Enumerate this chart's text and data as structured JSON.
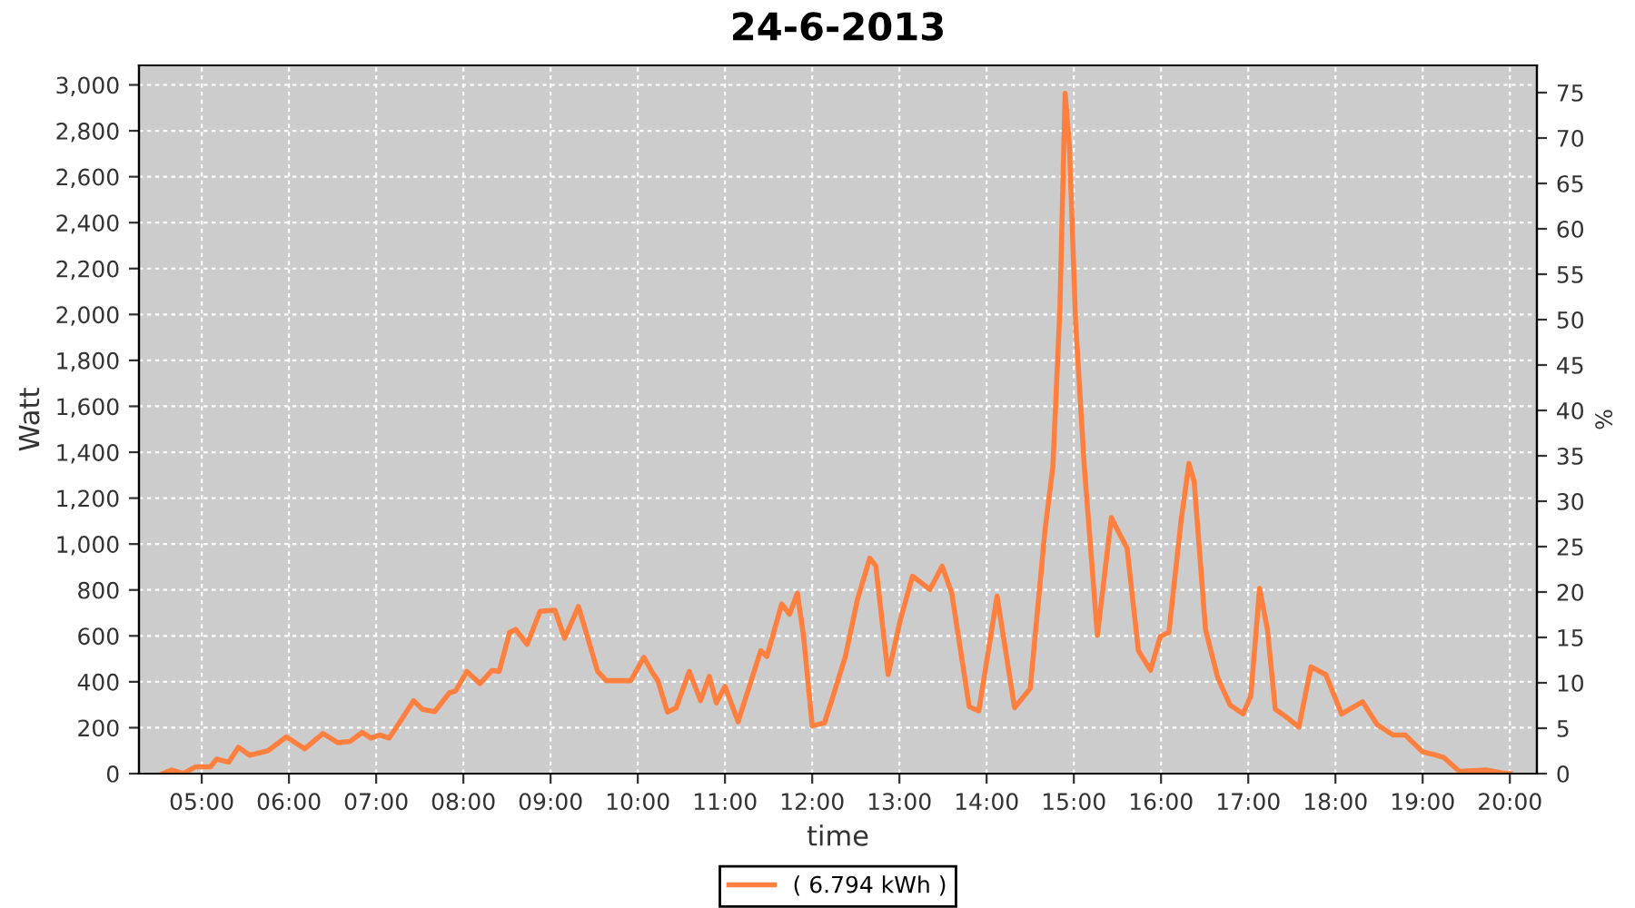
{
  "chart_data": {
    "type": "line",
    "title": "24-6-2013",
    "xlabel": "time",
    "ylabel": "Watt",
    "y2label": "%",
    "xlim": [
      4.28,
      20.31
    ],
    "ylim": [
      0,
      3085
    ],
    "y2lim": [
      0,
      78
    ],
    "xticks": [
      {
        "value": 5,
        "label": "05:00"
      },
      {
        "value": 6,
        "label": "06:00"
      },
      {
        "value": 7,
        "label": "07:00"
      },
      {
        "value": 8,
        "label": "08:00"
      },
      {
        "value": 9,
        "label": "09:00"
      },
      {
        "value": 10,
        "label": "10:00"
      },
      {
        "value": 11,
        "label": "11:00"
      },
      {
        "value": 12,
        "label": "12:00"
      },
      {
        "value": 13,
        "label": "13:00"
      },
      {
        "value": 14,
        "label": "14:00"
      },
      {
        "value": 15,
        "label": "15:00"
      },
      {
        "value": 16,
        "label": "16:00"
      },
      {
        "value": 17,
        "label": "17:00"
      },
      {
        "value": 18,
        "label": "18:00"
      },
      {
        "value": 19,
        "label": "19:00"
      },
      {
        "value": 20,
        "label": "20:00"
      }
    ],
    "yticks": [
      {
        "value": 0,
        "label": "0"
      },
      {
        "value": 200,
        "label": "200"
      },
      {
        "value": 400,
        "label": "400"
      },
      {
        "value": 600,
        "label": "600"
      },
      {
        "value": 800,
        "label": "800"
      },
      {
        "value": 1000,
        "label": "1,000"
      },
      {
        "value": 1200,
        "label": "1,200"
      },
      {
        "value": 1400,
        "label": "1,400"
      },
      {
        "value": 1600,
        "label": "1,600"
      },
      {
        "value": 1800,
        "label": "1,800"
      },
      {
        "value": 2000,
        "label": "2,000"
      },
      {
        "value": 2200,
        "label": "2,200"
      },
      {
        "value": 2400,
        "label": "2,400"
      },
      {
        "value": 2600,
        "label": "2,600"
      },
      {
        "value": 2800,
        "label": "2,800"
      },
      {
        "value": 3000,
        "label": "3,000"
      }
    ],
    "y2ticks": [
      0,
      5,
      10,
      15,
      20,
      25,
      30,
      35,
      40,
      45,
      50,
      55,
      60,
      65,
      70,
      75
    ],
    "grid": true,
    "legend": "bottom",
    "marker": "none",
    "line_style": "solid",
    "series": [
      {
        "name": "( 6.794 kWh )",
        "color": "#ff7f3f",
        "x": [
          4.55,
          4.65,
          4.79,
          4.93,
          5.1,
          5.17,
          5.31,
          5.42,
          5.55,
          5.76,
          5.97,
          6.18,
          6.39,
          6.56,
          6.7,
          6.84,
          6.94,
          7.04,
          7.15,
          7.29,
          7.43,
          7.53,
          7.67,
          7.84,
          7.91,
          8.04,
          8.19,
          8.33,
          8.41,
          8.53,
          8.6,
          8.73,
          8.88,
          9.05,
          9.16,
          9.32,
          9.54,
          9.64,
          9.92,
          10.07,
          10.16,
          10.23,
          10.34,
          10.44,
          10.59,
          10.72,
          10.82,
          10.9,
          11.0,
          11.15,
          11.41,
          11.48,
          11.65,
          11.74,
          11.83,
          11.9,
          12.0,
          12.14,
          12.24,
          12.38,
          12.52,
          12.66,
          12.73,
          12.87,
          13.01,
          13.15,
          13.35,
          13.49,
          13.6,
          13.8,
          13.91,
          14.12,
          14.32,
          14.5,
          14.67,
          14.76,
          14.84,
          14.9,
          14.95,
          15.02,
          15.12,
          15.27,
          15.43,
          15.5,
          15.61,
          15.74,
          15.88,
          15.99,
          16.09,
          16.23,
          16.32,
          16.38,
          16.51,
          16.65,
          16.79,
          16.94,
          17.03,
          17.13,
          17.22,
          17.31,
          17.48,
          17.58,
          17.72,
          17.89,
          18.07,
          18.31,
          18.48,
          18.66,
          18.8,
          19.0,
          19.14,
          19.24,
          19.42,
          19.73,
          19.91,
          20.01
        ],
        "values": [
          0,
          16,
          0,
          30,
          30,
          63,
          50,
          115,
          80,
          100,
          160,
          108,
          175,
          135,
          140,
          180,
          155,
          168,
          155,
          235,
          318,
          280,
          270,
          352,
          360,
          445,
          392,
          450,
          445,
          615,
          628,
          563,
          707,
          712,
          590,
          728,
          445,
          405,
          405,
          507,
          445,
          405,
          268,
          287,
          445,
          318,
          424,
          308,
          380,
          226,
          536,
          510,
          739,
          694,
          786,
          602,
          208,
          221,
          339,
          510,
          760,
          939,
          904,
          431,
          668,
          860,
          802,
          904,
          786,
          292,
          273,
          773,
          287,
          371,
          1062,
          1338,
          2022,
          2963,
          2731,
          1969,
          1338,
          602,
          1115,
          1062,
          983,
          536,
          450,
          597,
          615,
          1102,
          1351,
          1272,
          628,
          418,
          300,
          260,
          339,
          807,
          628,
          281,
          234,
          202,
          465,
          431,
          260,
          313,
          213,
          168,
          168,
          95,
          82,
          71,
          10,
          16,
          3,
          0
        ]
      }
    ]
  }
}
